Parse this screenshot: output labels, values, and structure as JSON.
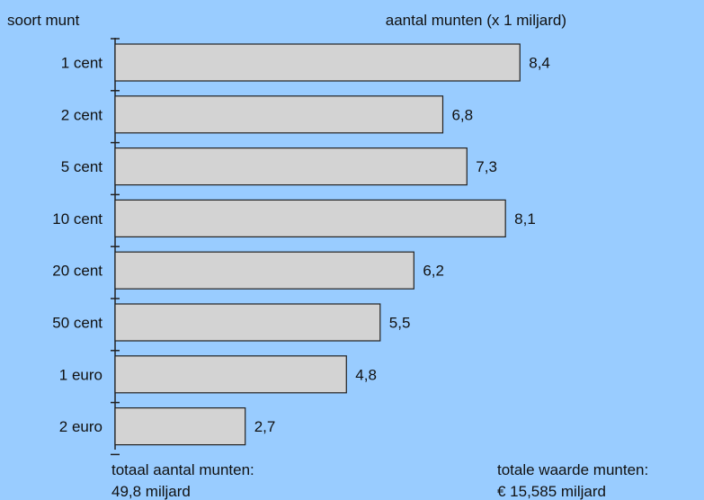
{
  "chart_data": {
    "type": "bar",
    "orientation": "horizontal",
    "ylabel": "soort munt",
    "xlabel": "aantal munten (x 1 miljard)",
    "categories": [
      "1 cent",
      "2 cent",
      "5 cent",
      "10 cent",
      "20 cent",
      "50 cent",
      "1 euro",
      "2 euro"
    ],
    "values": [
      8.4,
      6.8,
      7.3,
      8.1,
      6.2,
      5.5,
      4.8,
      2.7
    ],
    "value_labels": [
      "8,4",
      "6,8",
      "7,3",
      "8,1",
      "6,2",
      "5,5",
      "4,8",
      "2,7"
    ],
    "grid": false,
    "footer": {
      "total_count_label": "totaal aantal munten:",
      "total_count_value": "49,8 miljard",
      "total_value_label": "totale waarde munten:",
      "total_value_value": "€ 15,585 miljard"
    },
    "colors": {
      "background": "#99ccff",
      "bar_fill": "#d3d3d3",
      "bar_stroke": "#222222"
    }
  }
}
